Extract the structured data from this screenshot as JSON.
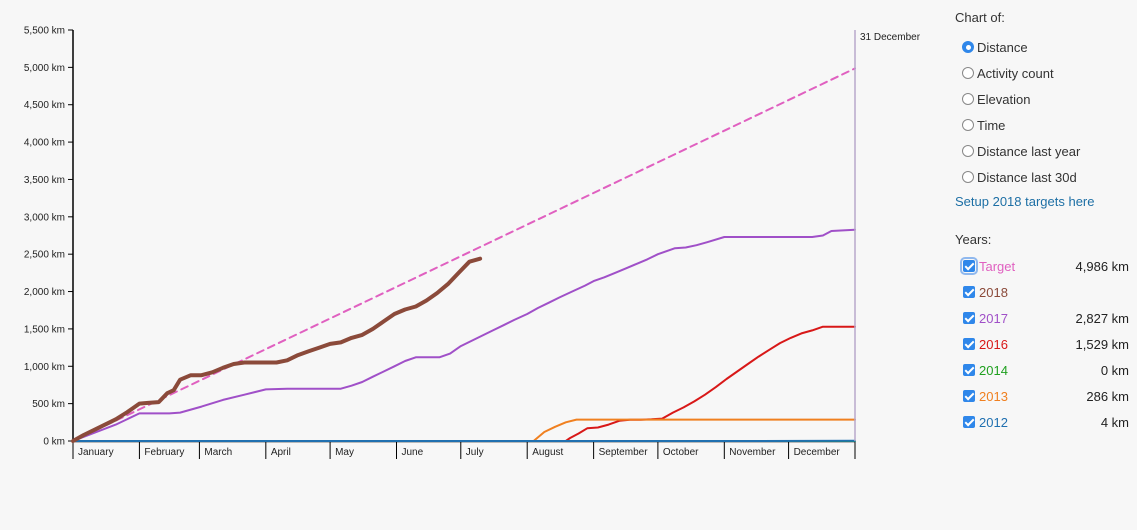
{
  "chart_data": {
    "type": "line",
    "ylim": [
      0,
      5500
    ],
    "yticks": [
      0,
      500,
      1000,
      1500,
      2000,
      2500,
      3000,
      3500,
      4000,
      4500,
      5000,
      5500
    ],
    "ytick_labels": [
      "0 km",
      "500 km",
      "1,000 km",
      "1,500 km",
      "2,000 km",
      "2,500 km",
      "3,000 km",
      "3,500 km",
      "4,000 km",
      "4,500 km",
      "5,000 km",
      "5,500 km"
    ],
    "xlim": [
      0,
      365
    ],
    "month_starts": [
      0,
      31,
      59,
      90,
      120,
      151,
      181,
      212,
      243,
      273,
      304,
      334
    ],
    "months": [
      "January",
      "February",
      "March",
      "April",
      "May",
      "June",
      "July",
      "August",
      "September",
      "October",
      "November",
      "December"
    ],
    "marker_label": "31 December",
    "marker_day": 365,
    "series": [
      {
        "name": "Target",
        "color": "#e060c0",
        "dashed": true,
        "width": 2,
        "x": [
          0,
          365
        ],
        "y": [
          0,
          4986
        ]
      },
      {
        "name": "2017",
        "color": "#a050c8",
        "width": 2,
        "x": [
          0,
          20,
          31,
          35,
          40,
          45,
          50,
          60,
          70,
          80,
          90,
          100,
          110,
          120,
          125,
          130,
          135,
          140,
          145,
          150,
          155,
          160,
          166,
          171,
          176,
          181,
          186,
          191,
          196,
          201,
          206,
          212,
          217,
          222,
          227,
          233,
          239,
          243,
          248,
          253,
          258,
          263,
          268,
          273,
          281,
          286,
          291,
          296,
          304,
          315,
          325,
          334,
          345,
          350,
          354,
          365
        ],
        "y": [
          0,
          220,
          370,
          370,
          370,
          370,
          380,
          460,
          550,
          620,
          690,
          700,
          700,
          700,
          700,
          740,
          790,
          860,
          930,
          1000,
          1070,
          1120,
          1120,
          1120,
          1170,
          1270,
          1340,
          1410,
          1480,
          1550,
          1620,
          1700,
          1780,
          1850,
          1920,
          2000,
          2080,
          2140,
          2190,
          2250,
          2310,
          2370,
          2430,
          2500,
          2580,
          2590,
          2620,
          2660,
          2730,
          2730,
          2730,
          2730,
          2730,
          2750,
          2810,
          2827
        ]
      },
      {
        "name": "2016",
        "color": "#d81818",
        "width": 2,
        "x": [
          0,
          230,
          232,
          236,
          240,
          245,
          250,
          255,
          260,
          265,
          270,
          275,
          280,
          285,
          290,
          295,
          300,
          305,
          310,
          315,
          320,
          325,
          330,
          335,
          340,
          345,
          350,
          365
        ],
        "y": [
          0,
          0,
          40,
          100,
          170,
          180,
          220,
          270,
          285,
          285,
          290,
          300,
          380,
          450,
          530,
          620,
          720,
          830,
          930,
          1030,
          1130,
          1220,
          1310,
          1380,
          1440,
          1480,
          1529,
          1529
        ]
      },
      {
        "name": "2013",
        "color": "#f08020",
        "width": 2,
        "x": [
          0,
          205,
          215,
          220,
          225,
          230,
          235,
          240,
          365
        ],
        "y": [
          0,
          0,
          0,
          120,
          190,
          250,
          286,
          286,
          286
        ]
      },
      {
        "name": "2014",
        "color": "#20a020",
        "width": 2,
        "x": [
          0,
          365
        ],
        "y": [
          0,
          0
        ]
      },
      {
        "name": "2012",
        "color": "#2070b0",
        "width": 2,
        "x": [
          0,
          320,
          365
        ],
        "y": [
          0,
          0,
          4
        ]
      },
      {
        "name": "2018",
        "color": "#8b4a3a",
        "width": 4,
        "x": [
          0,
          5,
          10,
          15,
          20,
          25,
          28,
          31,
          35,
          40,
          44,
          47,
          50,
          55,
          58,
          60,
          65,
          70,
          75,
          80,
          85,
          90,
          95,
          100,
          105,
          110,
          115,
          120,
          125,
          130,
          135,
          140,
          145,
          150,
          155,
          160,
          165,
          170,
          175,
          180,
          185,
          190
        ],
        "y": [
          0,
          80,
          150,
          220,
          290,
          380,
          440,
          500,
          510,
          520,
          640,
          680,
          820,
          880,
          880,
          880,
          920,
          980,
          1030,
          1050,
          1050,
          1050,
          1050,
          1080,
          1150,
          1200,
          1250,
          1300,
          1320,
          1380,
          1420,
          1500,
          1600,
          1700,
          1760,
          1800,
          1880,
          1980,
          2100,
          2250,
          2400,
          2440
        ]
      }
    ]
  },
  "panel": {
    "chart_of_label": "Chart of:",
    "options": [
      "Distance",
      "Activity count",
      "Elevation",
      "Time",
      "Distance last year",
      "Distance last 30d"
    ],
    "selected": 0,
    "setup_link": "Setup 2018 targets here",
    "years_label": "Years:",
    "years": [
      {
        "label": "Target",
        "value": "4,986 km",
        "color": "#e060c0"
      },
      {
        "label": "2018",
        "value": "",
        "color": "#8b4a3a"
      },
      {
        "label": "2017",
        "value": "2,827 km",
        "color": "#a050c8"
      },
      {
        "label": "2016",
        "value": "1,529 km",
        "color": "#d81818"
      },
      {
        "label": "2014",
        "value": "0 km",
        "color": "#20a020"
      },
      {
        "label": "2013",
        "value": "286 km",
        "color": "#f08020"
      },
      {
        "label": "2012",
        "value": "4 km",
        "color": "#2070b0"
      }
    ]
  }
}
